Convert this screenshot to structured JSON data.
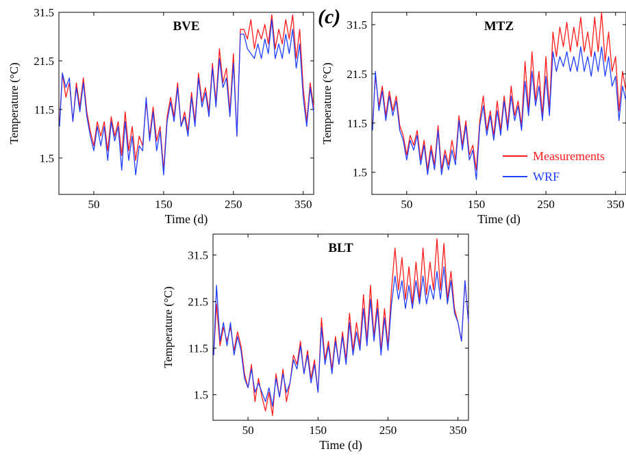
{
  "figure": {
    "panel_label": "(c)"
  },
  "colors": {
    "measurements": "#ff1a1a",
    "wrf": "#1f3fff",
    "axis": "#000000"
  },
  "chart_data": [
    {
      "type": "line",
      "title": "BVE",
      "xlabel": "Time (d)",
      "ylabel": "Temperature (°C)",
      "xlim": [
        0,
        365
      ],
      "ylim": [
        -6,
        31.5
      ],
      "xticks": [
        50,
        150,
        250,
        350
      ],
      "yticks": [
        1.5,
        11.5,
        21.5,
        31.5
      ],
      "grid": false,
      "legend": null,
      "series": [
        {
          "name": "Measurements",
          "color": "#ff1a1a",
          "x": [
            1,
            5,
            10,
            15,
            20,
            25,
            30,
            35,
            40,
            45,
            50,
            55,
            60,
            65,
            70,
            75,
            80,
            85,
            90,
            95,
            100,
            105,
            110,
            115,
            120,
            125,
            130,
            135,
            140,
            145,
            150,
            155,
            160,
            165,
            170,
            175,
            180,
            185,
            190,
            195,
            200,
            205,
            210,
            215,
            220,
            225,
            230,
            235,
            240,
            245,
            250,
            255,
            260,
            265,
            270,
            275,
            280,
            285,
            290,
            295,
            300,
            305,
            310,
            315,
            320,
            325,
            330,
            335,
            340,
            345,
            350,
            355,
            360,
            365
          ],
          "y": [
            9,
            19,
            14,
            17,
            9,
            17,
            12,
            18,
            11,
            7,
            4,
            9,
            6,
            9,
            3,
            10,
            6,
            9,
            2,
            11,
            3,
            8,
            1,
            6,
            4,
            13,
            6,
            12,
            5,
            8,
            -1,
            10,
            14,
            10,
            17,
            8,
            11,
            7,
            15,
            9,
            19,
            13,
            16,
            11,
            21,
            13,
            24,
            17,
            20,
            11,
            23,
            6,
            28,
            28,
            26,
            30,
            24,
            28,
            26,
            29,
            25,
            31,
            24,
            28,
            25,
            30,
            26,
            31,
            22,
            28,
            16,
            9,
            17,
            12
          ]
        },
        {
          "name": "WRF",
          "color": "#1f3fff",
          "x": [
            1,
            5,
            10,
            15,
            20,
            25,
            30,
            35,
            40,
            45,
            50,
            55,
            60,
            65,
            70,
            75,
            80,
            85,
            90,
            95,
            100,
            105,
            110,
            115,
            120,
            125,
            130,
            135,
            140,
            145,
            150,
            155,
            160,
            165,
            170,
            175,
            180,
            185,
            190,
            195,
            200,
            205,
            210,
            215,
            220,
            225,
            230,
            235,
            240,
            245,
            250,
            255,
            260,
            265,
            270,
            275,
            280,
            285,
            290,
            295,
            300,
            305,
            310,
            315,
            320,
            325,
            330,
            335,
            340,
            345,
            350,
            355,
            360,
            365
          ],
          "y": [
            8,
            19,
            16,
            18,
            9,
            16,
            11,
            17,
            10,
            6,
            3,
            8,
            4,
            8,
            1,
            9,
            5,
            8,
            -1,
            9,
            1,
            6,
            -2,
            4,
            3,
            14,
            5,
            11,
            3,
            7,
            -2,
            9,
            13,
            9,
            16,
            8,
            10,
            6,
            14,
            8,
            18,
            12,
            15,
            10,
            20,
            12,
            22,
            16,
            18,
            10,
            21,
            6,
            27,
            27,
            24,
            23,
            22,
            25,
            22,
            26,
            23,
            30,
            22,
            25,
            22,
            27,
            23,
            28,
            20,
            25,
            14,
            8,
            16,
            11
          ]
        }
      ]
    },
    {
      "type": "line",
      "title": "MTZ",
      "xlabel": "Time (d)",
      "ylabel": "Temperature (°C)",
      "xlim": [
        0,
        365
      ],
      "ylim": [
        -3,
        34
      ],
      "xticks": [
        50,
        150,
        250,
        350
      ],
      "yticks": [
        1.5,
        11.5,
        21.5,
        31.5
      ],
      "grid": false,
      "legend": {
        "position": "bottom-right",
        "entries": [
          "Measurements",
          "WRF"
        ]
      },
      "series": [
        {
          "name": "Measurements",
          "color": "#ff1a1a",
          "x": [
            1,
            5,
            10,
            15,
            20,
            25,
            30,
            35,
            40,
            45,
            50,
            55,
            60,
            65,
            70,
            75,
            80,
            85,
            90,
            95,
            100,
            105,
            110,
            115,
            120,
            125,
            130,
            135,
            140,
            145,
            150,
            155,
            160,
            165,
            170,
            175,
            180,
            185,
            190,
            195,
            200,
            205,
            210,
            215,
            220,
            225,
            230,
            235,
            240,
            245,
            250,
            255,
            260,
            265,
            270,
            275,
            280,
            285,
            290,
            295,
            300,
            305,
            310,
            315,
            320,
            325,
            330,
            335,
            340,
            345,
            350,
            355,
            360,
            365
          ],
          "y": [
            11,
            21,
            15,
            19,
            13,
            18,
            14,
            17,
            11,
            9,
            5,
            9,
            7,
            10,
            4,
            8,
            2,
            7,
            3,
            11,
            2,
            6,
            3,
            8,
            4,
            13,
            7,
            12,
            5,
            7,
            2,
            12,
            17,
            10,
            14,
            9,
            16,
            10,
            17,
            11,
            19,
            13,
            16,
            11,
            24,
            14,
            26,
            16,
            22,
            13,
            25,
            14,
            30,
            25,
            31,
            27,
            32,
            26,
            31,
            27,
            33,
            26,
            30,
            25,
            33,
            26,
            34,
            24,
            30,
            22,
            25,
            14,
            22,
            18
          ]
        },
        {
          "name": "WRF",
          "color": "#1f3fff",
          "x": [
            1,
            5,
            10,
            15,
            20,
            25,
            30,
            35,
            40,
            45,
            50,
            55,
            60,
            65,
            70,
            75,
            80,
            85,
            90,
            95,
            100,
            105,
            110,
            115,
            120,
            125,
            130,
            135,
            140,
            145,
            150,
            155,
            160,
            165,
            170,
            175,
            180,
            185,
            190,
            195,
            200,
            205,
            210,
            215,
            220,
            225,
            230,
            235,
            240,
            245,
            250,
            255,
            260,
            265,
            270,
            275,
            280,
            285,
            290,
            295,
            300,
            305,
            310,
            315,
            320,
            325,
            330,
            335,
            340,
            345,
            350,
            355,
            360,
            365
          ],
          "y": [
            10,
            22,
            14,
            18,
            12,
            17,
            13,
            16,
            10,
            8,
            4,
            8,
            6,
            9,
            3,
            7,
            1,
            6,
            2,
            10,
            1,
            5,
            2,
            6,
            3,
            12,
            6,
            11,
            4,
            6,
            0,
            11,
            15,
            9,
            13,
            8,
            14,
            9,
            16,
            10,
            17,
            12,
            15,
            10,
            20,
            13,
            22,
            15,
            19,
            12,
            21,
            13,
            26,
            22,
            25,
            23,
            26,
            22,
            25,
            22,
            27,
            22,
            25,
            21,
            26,
            22,
            27,
            21,
            25,
            19,
            21,
            12,
            19,
            16
          ]
        }
      ]
    },
    {
      "type": "line",
      "title": "BLT",
      "xlabel": "Time (d)",
      "ylabel": "Temperature (°C)",
      "xlim": [
        0,
        365
      ],
      "ylim": [
        -4,
        36
      ],
      "xticks": [
        50,
        150,
        250,
        350
      ],
      "yticks": [
        1.5,
        11.5,
        21.5,
        31.5
      ],
      "grid": false,
      "legend": null,
      "series": [
        {
          "name": "Measurements",
          "color": "#ff1a1a",
          "x": [
            1,
            5,
            10,
            15,
            20,
            25,
            30,
            35,
            40,
            45,
            50,
            55,
            60,
            65,
            70,
            75,
            80,
            85,
            90,
            95,
            100,
            105,
            110,
            115,
            120,
            125,
            130,
            135,
            140,
            145,
            150,
            155,
            160,
            165,
            170,
            175,
            180,
            185,
            190,
            195,
            200,
            205,
            210,
            215,
            220,
            225,
            230,
            235,
            240,
            245,
            250,
            255,
            260,
            265,
            270,
            275,
            280,
            285,
            290,
            295,
            300,
            305,
            310,
            315,
            320,
            325,
            330,
            335,
            340,
            345,
            350,
            355,
            360,
            365
          ],
          "y": [
            10,
            21,
            12,
            16,
            13,
            16,
            11,
            15,
            12,
            6,
            3,
            8,
            0,
            5,
            1,
            -2,
            2,
            -3,
            6,
            1,
            7,
            0,
            4,
            10,
            8,
            13,
            6,
            11,
            5,
            9,
            2,
            18,
            9,
            13,
            7,
            14,
            8,
            15,
            9,
            19,
            11,
            17,
            12,
            23,
            13,
            25,
            14,
            22,
            11,
            20,
            12,
            24,
            33,
            24,
            31,
            22,
            29,
            21,
            30,
            22,
            33,
            23,
            30,
            24,
            35,
            24,
            34,
            22,
            28,
            20,
            17,
            13,
            26,
            17
          ]
        },
        {
          "name": "WRF",
          "color": "#1f3fff",
          "x": [
            1,
            5,
            10,
            15,
            20,
            25,
            30,
            35,
            40,
            45,
            50,
            55,
            60,
            65,
            70,
            75,
            80,
            85,
            90,
            95,
            100,
            105,
            110,
            115,
            120,
            125,
            130,
            135,
            140,
            145,
            150,
            155,
            160,
            165,
            170,
            175,
            180,
            185,
            190,
            195,
            200,
            205,
            210,
            215,
            220,
            225,
            230,
            235,
            240,
            245,
            250,
            255,
            260,
            265,
            270,
            275,
            280,
            285,
            290,
            295,
            300,
            305,
            310,
            315,
            320,
            325,
            330,
            335,
            340,
            345,
            350,
            355,
            360,
            365
          ],
          "y": [
            10,
            25,
            13,
            17,
            12,
            17,
            10,
            14,
            11,
            5,
            3,
            7,
            2,
            4,
            2,
            0,
            3,
            -1,
            5,
            1,
            6,
            2,
            4,
            9,
            7,
            12,
            6,
            10,
            4,
            8,
            2,
            16,
            8,
            12,
            6,
            13,
            8,
            14,
            8,
            17,
            10,
            15,
            11,
            20,
            12,
            22,
            13,
            20,
            10,
            18,
            11,
            21,
            27,
            22,
            26,
            20,
            25,
            20,
            26,
            21,
            27,
            21,
            25,
            22,
            28,
            22,
            29,
            21,
            26,
            19,
            17,
            13,
            26,
            17
          ]
        }
      ]
    }
  ]
}
